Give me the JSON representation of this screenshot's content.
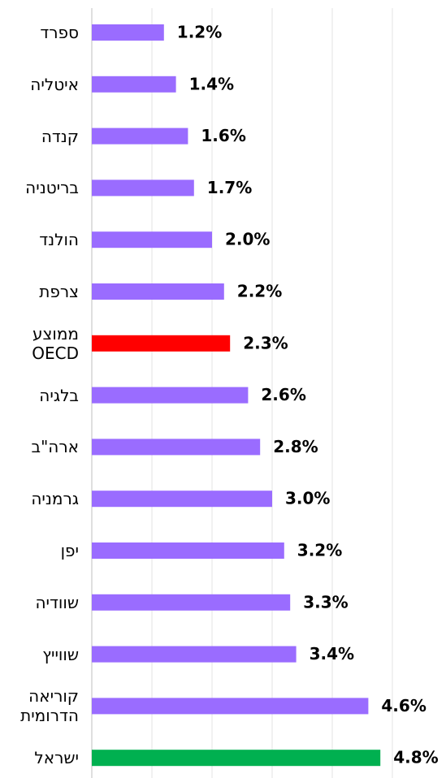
{
  "chart_data": {
    "type": "barh",
    "categories": [
      "ספרד",
      "איטליה",
      "קנדה",
      "בריטניה",
      "הולנד",
      "צרפת",
      "ממוצע\nOECD",
      "בלגיה",
      "ארה\"ב",
      "גרמניה",
      "יפן",
      "שוודיה",
      "שווייץ",
      "קוריאה\nהדרומית",
      "ישראל"
    ],
    "values": [
      1.2,
      1.4,
      1.6,
      1.7,
      2.0,
      2.2,
      2.3,
      2.6,
      2.8,
      3.0,
      3.2,
      3.3,
      3.4,
      4.6,
      4.8
    ],
    "value_labels": [
      "1.2%",
      "1.4%",
      "1.6%",
      "1.7%",
      "2.0%",
      "2.2%",
      "2.3%",
      "2.6%",
      "2.8%",
      "3.0%",
      "3.2%",
      "3.3%",
      "3.4%",
      "4.6%",
      "4.8%"
    ],
    "colors": [
      "#9a6cff",
      "#9a6cff",
      "#9a6cff",
      "#9a6cff",
      "#9a6cff",
      "#9a6cff",
      "#ff0000",
      "#9a6cff",
      "#9a6cff",
      "#9a6cff",
      "#9a6cff",
      "#9a6cff",
      "#9a6cff",
      "#9a6cff",
      "#00b050"
    ],
    "xlim": [
      0,
      5
    ],
    "xticks": [
      0,
      1,
      2,
      3,
      4,
      5
    ],
    "grid": true
  }
}
